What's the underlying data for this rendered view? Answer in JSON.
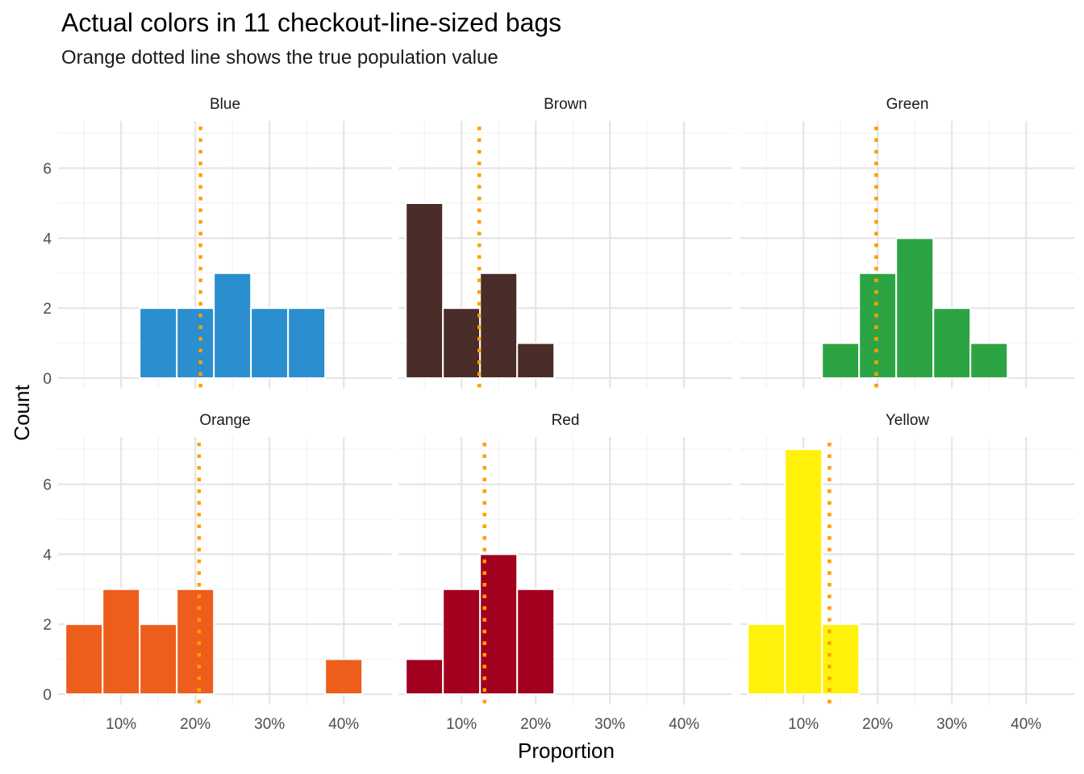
{
  "chart_data": {
    "type": "bar",
    "title": "Actual colors in 11 checkout-line-sized bags",
    "subtitle": "Orange dotted line shows the true population value",
    "xlabel": "Proportion",
    "ylabel": "Count",
    "x_ticks": [
      "10%",
      "20%",
      "30%",
      "40%"
    ],
    "y_ticks": [
      "0",
      "2",
      "4",
      "6"
    ],
    "xlim": [
      0.015,
      0.465
    ],
    "ylim": [
      -0.3,
      7.35
    ],
    "bin_width": 0.05,
    "reference_line_color": "#FF9F00",
    "grid": true,
    "panels": [
      {
        "name": "Blue",
        "color": "#2A8ECF",
        "true_value": 0.207,
        "bins": [
          {
            "x": 0.15,
            "count": 2
          },
          {
            "x": 0.2,
            "count": 2
          },
          {
            "x": 0.25,
            "count": 3
          },
          {
            "x": 0.3,
            "count": 2
          },
          {
            "x": 0.35,
            "count": 2
          }
        ]
      },
      {
        "name": "Brown",
        "color": "#4A2C28",
        "true_value": 0.124,
        "bins": [
          {
            "x": 0.05,
            "count": 5
          },
          {
            "x": 0.1,
            "count": 2
          },
          {
            "x": 0.15,
            "count": 3
          },
          {
            "x": 0.2,
            "count": 1
          }
        ]
      },
      {
        "name": "Green",
        "color": "#2CA444",
        "true_value": 0.198,
        "bins": [
          {
            "x": 0.15,
            "count": 1
          },
          {
            "x": 0.2,
            "count": 3
          },
          {
            "x": 0.25,
            "count": 4
          },
          {
            "x": 0.3,
            "count": 2
          },
          {
            "x": 0.35,
            "count": 1
          }
        ]
      },
      {
        "name": "Orange",
        "color": "#ED5D1C",
        "true_value": 0.205,
        "bins": [
          {
            "x": 0.05,
            "count": 2
          },
          {
            "x": 0.1,
            "count": 3
          },
          {
            "x": 0.15,
            "count": 2
          },
          {
            "x": 0.2,
            "count": 3
          },
          {
            "x": 0.4,
            "count": 1
          }
        ]
      },
      {
        "name": "Red",
        "color": "#A1001F",
        "true_value": 0.131,
        "bins": [
          {
            "x": 0.05,
            "count": 1
          },
          {
            "x": 0.1,
            "count": 3
          },
          {
            "x": 0.15,
            "count": 4
          },
          {
            "x": 0.2,
            "count": 3
          }
        ]
      },
      {
        "name": "Yellow",
        "color": "#FFF10A",
        "true_value": 0.135,
        "bins": [
          {
            "x": 0.05,
            "count": 2
          },
          {
            "x": 0.1,
            "count": 7
          },
          {
            "x": 0.15,
            "count": 2
          }
        ]
      }
    ]
  }
}
